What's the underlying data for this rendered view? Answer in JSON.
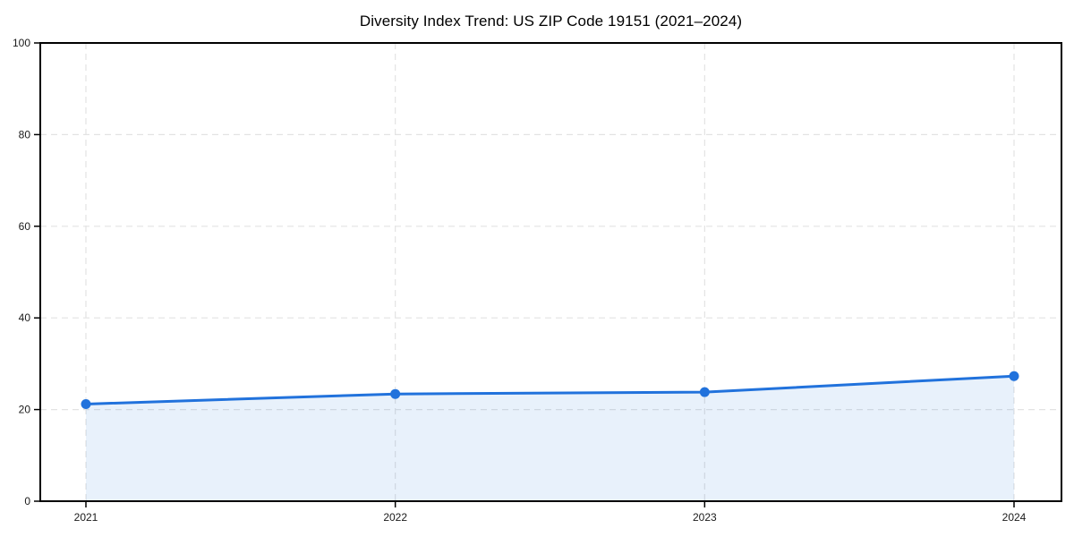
{
  "chart_data": {
    "type": "area",
    "title": "Diversity Index Trend: US ZIP Code 19151 (2021–2024)",
    "categories": [
      "2021",
      "2022",
      "2023",
      "2024"
    ],
    "series": [
      {
        "name": "Diversity Index",
        "values": [
          21.2,
          23.4,
          23.8,
          27.3
        ]
      }
    ],
    "xlabel": "",
    "ylabel": "",
    "ylim": [
      0,
      100
    ],
    "yticks": [
      0,
      20,
      40,
      60,
      80,
      100
    ],
    "grid": "dashed-both-axes",
    "legend": "none",
    "colors": {
      "line": "#2172dc",
      "marker": "#2172dc",
      "area_fill": "rgba(33,114,220,0.10)",
      "gridline": "#e3e3e3",
      "spine": "#000000",
      "tick_label": "#1a1a1a"
    }
  }
}
